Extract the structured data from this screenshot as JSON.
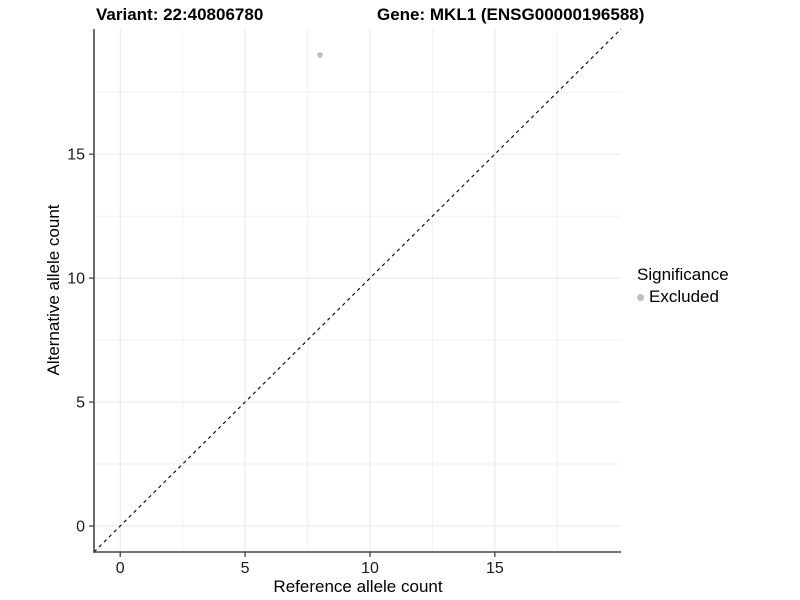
{
  "titles": {
    "variant": "Variant: 22:40806780",
    "gene": "Gene: MKL1 (ENSG00000196588)"
  },
  "legend": {
    "title": "Significance",
    "position": "right",
    "items": [
      {
        "label": "Excluded",
        "color": "#bfbfbf",
        "marker": "circle-icon"
      }
    ]
  },
  "chart_data": {
    "type": "scatter",
    "title_left": "Variant: 22:40806780",
    "title_right": "Gene: MKL1 (ENSG00000196588)",
    "xlabel": "Reference allele count",
    "ylabel": "Alternative allele count",
    "xlim": [
      -1.05,
      20.05
    ],
    "ylim": [
      -1.05,
      20.05
    ],
    "x_ticks": [
      0,
      5,
      10,
      15
    ],
    "y_ticks": [
      0,
      5,
      10,
      15
    ],
    "x_minor": [
      2.5,
      7.5,
      12.5,
      17.5
    ],
    "y_minor": [
      2.5,
      7.5,
      12.5,
      17.5
    ],
    "grid": "major and minor, light gray on white",
    "legend_position": "right",
    "series": [
      {
        "name": "Excluded",
        "color": "#bfbfbf",
        "points": [
          [
            8,
            19
          ]
        ]
      }
    ],
    "reference_line": {
      "type": "identity y=x",
      "style": "dashed",
      "color": "#000000"
    }
  },
  "colors": {
    "background": "#ffffff",
    "grid_major": "#e7e7e7",
    "grid_minor": "#f1f1f1",
    "axis": "#464646",
    "tick_text": "#1a1a1a",
    "text": "#000000",
    "point": "#bfbfbf"
  }
}
